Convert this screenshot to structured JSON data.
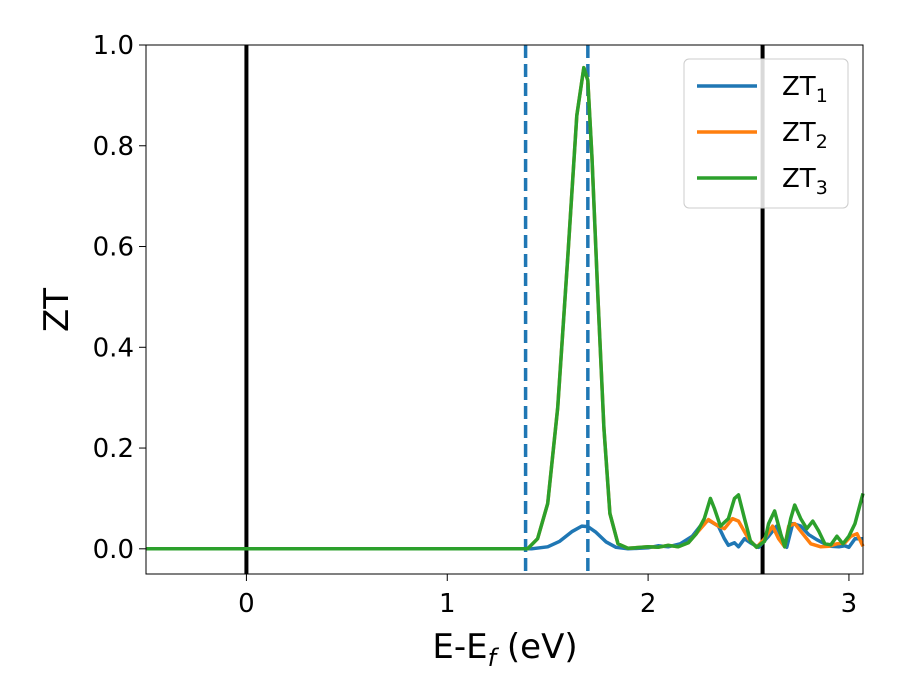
{
  "chart_data": {
    "type": "line",
    "xlabel": {
      "main": "E-E",
      "sub": "f",
      "rest": " (eV)"
    },
    "ylabel": "ZT",
    "xlim": [
      -0.5,
      3.07
    ],
    "ylim": [
      -0.05,
      1.0
    ],
    "x_ticks": [
      0,
      1,
      2,
      3
    ],
    "x_tick_labels": [
      "0",
      "1",
      "2",
      "3"
    ],
    "y_ticks": [
      0.0,
      0.2,
      0.4,
      0.6,
      0.8,
      1.0
    ],
    "y_tick_labels": [
      "0.0",
      "0.2",
      "0.4",
      "0.6",
      "0.8",
      "1.0"
    ],
    "grid": false,
    "legend": {
      "placement": "top-right"
    },
    "series": [
      {
        "name": "ZT",
        "name_sub": "1",
        "color": "#1f77b4",
        "points": [
          [
            -0.5,
            0.0
          ],
          [
            1.35,
            0.0
          ],
          [
            1.42,
            0.0
          ],
          [
            1.5,
            0.004
          ],
          [
            1.56,
            0.015
          ],
          [
            1.62,
            0.034
          ],
          [
            1.67,
            0.045
          ],
          [
            1.7,
            0.044
          ],
          [
            1.74,
            0.033
          ],
          [
            1.79,
            0.014
          ],
          [
            1.84,
            0.003
          ],
          [
            1.9,
            0.0
          ],
          [
            2.0,
            0.002
          ],
          [
            2.05,
            0.006
          ],
          [
            2.1,
            0.004
          ],
          [
            2.16,
            0.01
          ],
          [
            2.22,
            0.025
          ],
          [
            2.26,
            0.045
          ],
          [
            2.3,
            0.057
          ],
          [
            2.35,
            0.045
          ],
          [
            2.38,
            0.02
          ],
          [
            2.4,
            0.007
          ],
          [
            2.43,
            0.012
          ],
          [
            2.45,
            0.004
          ],
          [
            2.48,
            0.02
          ],
          [
            2.51,
            0.012
          ],
          [
            2.55,
            0.003
          ],
          [
            2.6,
            0.025
          ],
          [
            2.64,
            0.045
          ],
          [
            2.67,
            0.018
          ],
          [
            2.69,
            0.003
          ],
          [
            2.72,
            0.05
          ],
          [
            2.76,
            0.045
          ],
          [
            2.8,
            0.028
          ],
          [
            2.84,
            0.018
          ],
          [
            2.88,
            0.01
          ],
          [
            2.91,
            0.005
          ],
          [
            2.95,
            0.004
          ],
          [
            2.98,
            0.006
          ],
          [
            3.0,
            0.003
          ],
          [
            3.03,
            0.02
          ],
          [
            3.07,
            0.02
          ]
        ]
      },
      {
        "name": "ZT",
        "name_sub": "2",
        "color": "#ff7f0e",
        "points": [
          [
            -0.5,
            0.0
          ],
          [
            1.35,
            0.0
          ],
          [
            1.4,
            0.0
          ],
          [
            1.45,
            0.02
          ],
          [
            1.5,
            0.09
          ],
          [
            1.55,
            0.28
          ],
          [
            1.6,
            0.58
          ],
          [
            1.645,
            0.86
          ],
          [
            1.68,
            0.955
          ],
          [
            1.7,
            0.93
          ],
          [
            1.72,
            0.78
          ],
          [
            1.75,
            0.5
          ],
          [
            1.78,
            0.24
          ],
          [
            1.81,
            0.07
          ],
          [
            1.85,
            0.01
          ],
          [
            1.9,
            0.001
          ],
          [
            2.0,
            0.004
          ],
          [
            2.05,
            0.003
          ],
          [
            2.1,
            0.007
          ],
          [
            2.15,
            0.004
          ],
          [
            2.2,
            0.012
          ],
          [
            2.25,
            0.035
          ],
          [
            2.3,
            0.058
          ],
          [
            2.35,
            0.045
          ],
          [
            2.38,
            0.04
          ],
          [
            2.42,
            0.06
          ],
          [
            2.45,
            0.055
          ],
          [
            2.5,
            0.02
          ],
          [
            2.54,
            0.003
          ],
          [
            2.58,
            0.02
          ],
          [
            2.62,
            0.045
          ],
          [
            2.65,
            0.02
          ],
          [
            2.68,
            0.004
          ],
          [
            2.7,
            0.045
          ],
          [
            2.73,
            0.05
          ],
          [
            2.77,
            0.03
          ],
          [
            2.81,
            0.01
          ],
          [
            2.86,
            0.004
          ],
          [
            2.9,
            0.005
          ],
          [
            2.94,
            0.01
          ],
          [
            2.98,
            0.012
          ],
          [
            3.01,
            0.025
          ],
          [
            3.04,
            0.03
          ],
          [
            3.07,
            0.005
          ]
        ]
      },
      {
        "name": "ZT",
        "name_sub": "3",
        "color": "#2ca02c",
        "points": [
          [
            -0.5,
            0.0
          ],
          [
            1.35,
            0.0
          ],
          [
            1.4,
            0.0
          ],
          [
            1.45,
            0.02
          ],
          [
            1.5,
            0.09
          ],
          [
            1.55,
            0.28
          ],
          [
            1.6,
            0.58
          ],
          [
            1.645,
            0.86
          ],
          [
            1.68,
            0.955
          ],
          [
            1.7,
            0.93
          ],
          [
            1.72,
            0.78
          ],
          [
            1.75,
            0.5
          ],
          [
            1.78,
            0.24
          ],
          [
            1.81,
            0.07
          ],
          [
            1.85,
            0.01
          ],
          [
            1.9,
            0.001
          ],
          [
            2.0,
            0.004
          ],
          [
            2.05,
            0.003
          ],
          [
            2.1,
            0.007
          ],
          [
            2.15,
            0.004
          ],
          [
            2.2,
            0.012
          ],
          [
            2.24,
            0.03
          ],
          [
            2.28,
            0.06
          ],
          [
            2.31,
            0.1
          ],
          [
            2.33,
            0.08
          ],
          [
            2.36,
            0.045
          ],
          [
            2.4,
            0.06
          ],
          [
            2.43,
            0.1
          ],
          [
            2.45,
            0.107
          ],
          [
            2.48,
            0.06
          ],
          [
            2.51,
            0.015
          ],
          [
            2.54,
            0.003
          ],
          [
            2.58,
            0.015
          ],
          [
            2.6,
            0.05
          ],
          [
            2.63,
            0.075
          ],
          [
            2.66,
            0.03
          ],
          [
            2.68,
            0.004
          ],
          [
            2.71,
            0.06
          ],
          [
            2.73,
            0.087
          ],
          [
            2.76,
            0.06
          ],
          [
            2.79,
            0.04
          ],
          [
            2.82,
            0.055
          ],
          [
            2.85,
            0.035
          ],
          [
            2.88,
            0.01
          ],
          [
            2.91,
            0.008
          ],
          [
            2.94,
            0.025
          ],
          [
            2.97,
            0.01
          ],
          [
            3.0,
            0.025
          ],
          [
            3.03,
            0.05
          ],
          [
            3.05,
            0.08
          ],
          [
            3.07,
            0.11
          ]
        ]
      }
    ],
    "vertical_lines": [
      {
        "x": 0.0,
        "style": "solid",
        "color": "#000000"
      },
      {
        "x": 2.57,
        "style": "solid",
        "color": "#000000"
      },
      {
        "x": 1.39,
        "style": "dashed",
        "color": "#1f77b4"
      },
      {
        "x": 1.7,
        "style": "dashed",
        "color": "#1f77b4"
      }
    ]
  }
}
